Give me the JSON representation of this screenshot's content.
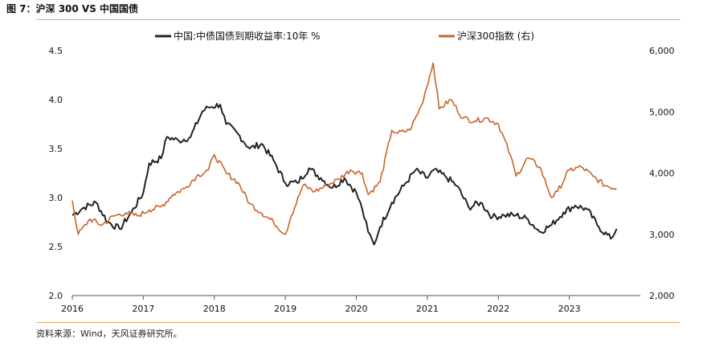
{
  "header": {
    "title": "图 7：沪深 300 VS  中国国债"
  },
  "footer": {
    "source": "资料来源：Wind，天风证券研究所。"
  },
  "colors": {
    "bond": "#222222",
    "index": "#c8642a",
    "rule": "#f0a860"
  },
  "chart_data": {
    "type": "line",
    "title": "图 7：沪深 300 VS  中国国债",
    "x_ticks": [
      "2016",
      "2017",
      "2018",
      "2019",
      "2020",
      "2021",
      "2022",
      "2023"
    ],
    "y_left": {
      "ticks": [
        "4.5",
        "4.0",
        "3.5",
        "3.0",
        "2.5",
        "2.0"
      ],
      "range": [
        2.0,
        4.5
      ]
    },
    "y_right": {
      "ticks": [
        "6,000",
        "5,000",
        "4,000",
        "3,000",
        "2,000"
      ],
      "range": [
        2000,
        6000
      ]
    },
    "legend_placement": "top",
    "grid": false,
    "series": [
      {
        "name": "中国:中债国债到期收益率:10年 %",
        "axis": "left",
        "color": "#222222",
        "x": [
          "2016-01",
          "2016-03",
          "2016-05",
          "2016-07",
          "2016-09",
          "2016-11",
          "2017-01",
          "2017-02",
          "2017-04",
          "2017-05",
          "2017-07",
          "2017-09",
          "2017-11",
          "2017-12",
          "2018-02",
          "2018-03",
          "2018-05",
          "2018-07",
          "2018-09",
          "2018-11",
          "2019-01",
          "2019-03",
          "2019-05",
          "2019-07",
          "2019-09",
          "2019-11",
          "2020-01",
          "2020-02",
          "2020-03",
          "2020-04",
          "2020-05",
          "2020-07",
          "2020-09",
          "2020-11",
          "2021-01",
          "2021-02",
          "2021-04",
          "2021-06",
          "2021-08",
          "2021-10",
          "2021-12",
          "2022-02",
          "2022-04",
          "2022-06",
          "2022-08",
          "2022-10",
          "2022-12",
          "2023-02",
          "2023-04",
          "2023-06",
          "2023-08",
          "2023-09"
        ],
        "values": [
          2.82,
          2.9,
          2.95,
          2.75,
          2.68,
          2.85,
          3.05,
          3.35,
          3.4,
          3.62,
          3.58,
          3.62,
          3.88,
          3.92,
          3.95,
          3.75,
          3.65,
          3.5,
          3.55,
          3.38,
          3.15,
          3.15,
          3.3,
          3.2,
          3.1,
          3.2,
          3.05,
          2.88,
          2.65,
          2.52,
          2.7,
          2.95,
          3.12,
          3.28,
          3.2,
          3.28,
          3.22,
          3.12,
          2.9,
          2.95,
          2.8,
          2.82,
          2.82,
          2.78,
          2.65,
          2.72,
          2.85,
          2.92,
          2.88,
          2.7,
          2.58,
          2.68
        ]
      },
      {
        "name": "沪深300指数 (右)",
        "axis": "right",
        "color": "#c8642a",
        "x": [
          "2016-01",
          "2016-02",
          "2016-04",
          "2016-06",
          "2016-08",
          "2016-10",
          "2016-12",
          "2017-02",
          "2017-04",
          "2017-06",
          "2017-08",
          "2017-10",
          "2017-12",
          "2018-01",
          "2018-03",
          "2018-05",
          "2018-07",
          "2018-09",
          "2018-11",
          "2019-01",
          "2019-02",
          "2019-04",
          "2019-06",
          "2019-08",
          "2019-10",
          "2019-12",
          "2020-02",
          "2020-03",
          "2020-05",
          "2020-07",
          "2020-08",
          "2020-10",
          "2020-12",
          "2021-02",
          "2021-03",
          "2021-05",
          "2021-07",
          "2021-09",
          "2021-11",
          "2022-01",
          "2022-03",
          "2022-04",
          "2022-06",
          "2022-08",
          "2022-10",
          "2022-11",
          "2023-01",
          "2023-03",
          "2023-05",
          "2023-07",
          "2023-09"
        ],
        "values": [
          3550,
          3000,
          3250,
          3150,
          3300,
          3350,
          3300,
          3400,
          3450,
          3650,
          3750,
          3950,
          4050,
          4300,
          4000,
          3850,
          3500,
          3350,
          3200,
          3000,
          3300,
          3800,
          3700,
          3800,
          3900,
          4050,
          4000,
          3650,
          3850,
          4700,
          4650,
          4700,
          5100,
          5800,
          5050,
          5200,
          4900,
          4850,
          4900,
          4800,
          4300,
          3950,
          4250,
          4100,
          3600,
          3700,
          4050,
          4100,
          3950,
          3800,
          3750
        ]
      }
    ]
  }
}
